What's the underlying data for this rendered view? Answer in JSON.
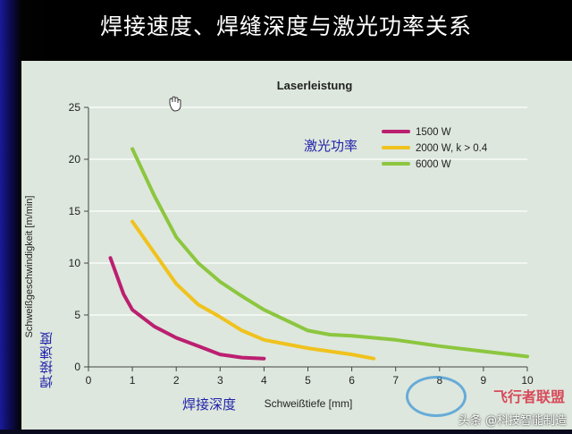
{
  "slide": {
    "title": "焊接速度、焊缝深度与激光功率关系"
  },
  "annotations": {
    "laser_power": "激光功率",
    "welding_speed": "焊接速度",
    "weld_depth": "焊接深度"
  },
  "watermark": {
    "brand": "飞行者联盟",
    "author": "头条 @科技智能制造"
  },
  "colors": {
    "series_1500": "#bb1f70",
    "series_2000": "#f0c21d",
    "series_6000": "#8cc63f",
    "grid": "#ffffff",
    "plot_bg": "#dde7dd"
  },
  "chart_data": {
    "type": "line",
    "title": "Laserleistung",
    "xlabel": "Schweißtiefe [mm]",
    "ylabel": "Schweißgeschwindigkeit [m/min]",
    "xlim": [
      0,
      10
    ],
    "ylim": [
      0,
      25
    ],
    "x_ticks": [
      0,
      1,
      2,
      3,
      4,
      5,
      6,
      7,
      8,
      9,
      10
    ],
    "y_ticks": [
      0,
      5,
      10,
      15,
      20,
      25
    ],
    "grid": "horizontal",
    "legend_position": "top-right",
    "series": [
      {
        "name": "1500 W",
        "color": "#bb1f70",
        "points": [
          [
            0.5,
            10.5
          ],
          [
            0.8,
            7.0
          ],
          [
            1.0,
            5.5
          ],
          [
            1.5,
            3.9
          ],
          [
            2.0,
            2.8
          ],
          [
            2.5,
            2.0
          ],
          [
            3.0,
            1.2
          ],
          [
            3.5,
            0.9
          ],
          [
            4.0,
            0.8
          ]
        ]
      },
      {
        "name": "2000 W, k > 0.4",
        "color": "#f0c21d",
        "points": [
          [
            1.0,
            14.0
          ],
          [
            1.5,
            11.0
          ],
          [
            2.0,
            8.0
          ],
          [
            2.5,
            6.0
          ],
          [
            3.0,
            4.8
          ],
          [
            3.5,
            3.5
          ],
          [
            4.0,
            2.6
          ],
          [
            4.5,
            2.2
          ],
          [
            5.0,
            1.8
          ],
          [
            5.5,
            1.5
          ],
          [
            6.0,
            1.2
          ],
          [
            6.5,
            0.8
          ]
        ]
      },
      {
        "name": "6000 W",
        "color": "#8cc63f",
        "points": [
          [
            1.0,
            21.0
          ],
          [
            1.5,
            16.5
          ],
          [
            2.0,
            12.5
          ],
          [
            2.5,
            10.0
          ],
          [
            3.0,
            8.2
          ],
          [
            3.5,
            6.8
          ],
          [
            4.0,
            5.5
          ],
          [
            4.5,
            4.5
          ],
          [
            5.0,
            3.5
          ],
          [
            5.5,
            3.1
          ],
          [
            6.0,
            3.0
          ],
          [
            7.0,
            2.6
          ],
          [
            8.0,
            2.0
          ],
          [
            9.0,
            1.5
          ],
          [
            10.0,
            1.0
          ]
        ]
      }
    ]
  }
}
